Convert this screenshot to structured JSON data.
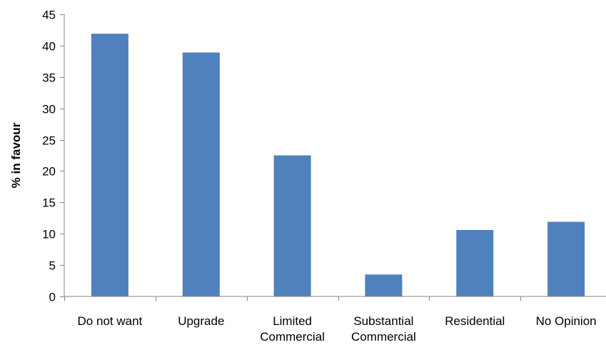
{
  "chart_data": {
    "type": "bar",
    "title": "",
    "xlabel": "",
    "ylabel": "% in favour",
    "categories": [
      [
        "Do not want"
      ],
      [
        "Upgrade"
      ],
      [
        "Limited",
        "Commercial"
      ],
      [
        "Substantial",
        "Commercial"
      ],
      [
        "Residential"
      ],
      [
        "No Opinion"
      ]
    ],
    "values": [
      41.9,
      38.9,
      22.5,
      3.5,
      10.6,
      11.9
    ],
    "ylim": [
      0,
      45
    ],
    "yticks": [
      0,
      5,
      10,
      15,
      20,
      25,
      30,
      35,
      40,
      45
    ],
    "grid": false,
    "legend": "none",
    "bar_color": "#4F81BD",
    "axis_color": "#868686"
  }
}
